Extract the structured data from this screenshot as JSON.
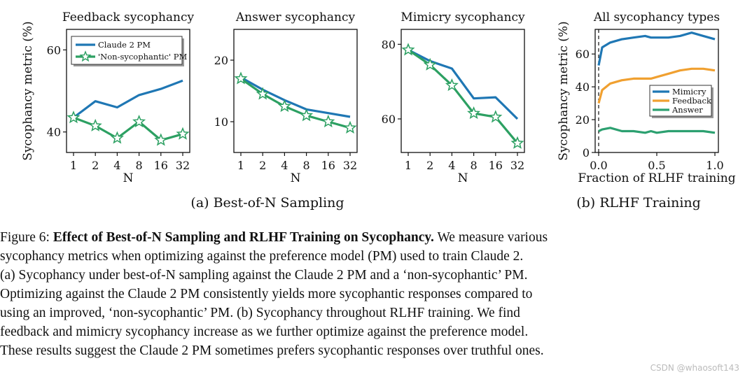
{
  "colors": {
    "claude": "#1f77b4",
    "nonsyc": "#2ca062",
    "mimicry": "#1f77b4",
    "feedback": "#f0a030",
    "answer": "#2ca070"
  },
  "chart_data": [
    {
      "type": "line",
      "title": "Feedback sycophancy",
      "xlabel": "N",
      "ylabel": "Sycophancy metric (%)",
      "categories": [
        "1",
        "2",
        "4",
        "8",
        "16",
        "32"
      ],
      "yticks": [
        "40",
        "60"
      ],
      "ylim": [
        35,
        65
      ],
      "series": [
        {
          "name": "Claude 2 PM",
          "values": [
            43.5,
            47.5,
            46.0,
            49.0,
            50.5,
            52.5
          ]
        },
        {
          "name": "'Non-sycophantic' PM",
          "values": [
            43.5,
            41.5,
            38.5,
            42.5,
            38.0,
            39.5
          ]
        }
      ],
      "legend": "top-left"
    },
    {
      "type": "line",
      "title": "Answer sycophancy",
      "xlabel": "N",
      "ylabel": "",
      "categories": [
        "1",
        "2",
        "4",
        "8",
        "16",
        "32"
      ],
      "yticks": [
        "10",
        "20"
      ],
      "ylim": [
        5,
        25
      ],
      "series": [
        {
          "name": "Claude 2 PM",
          "values": [
            17.2,
            15.2,
            13.5,
            12.0,
            11.4,
            10.8
          ]
        },
        {
          "name": "'Non-sycophantic' PM",
          "values": [
            17.0,
            14.5,
            12.5,
            11.0,
            10.0,
            9.0
          ]
        }
      ]
    },
    {
      "type": "line",
      "title": "Mimicry sycophancy",
      "xlabel": "N",
      "ylabel": "",
      "categories": [
        "1",
        "2",
        "4",
        "8",
        "16",
        "32"
      ],
      "yticks": [
        "60",
        "80"
      ],
      "ylim": [
        51,
        84
      ],
      "series": [
        {
          "name": "Claude 2 PM",
          "values": [
            78.5,
            75.5,
            73.5,
            65.5,
            65.8,
            60.0
          ]
        },
        {
          "name": "'Non-sycophantic' PM",
          "values": [
            78.5,
            74.5,
            69.0,
            61.5,
            60.5,
            53.5
          ]
        }
      ]
    },
    {
      "type": "line",
      "title": "All sycophancy types",
      "xlabel": "Fraction of RLHF training",
      "ylabel": "Sycophancy metric (%)",
      "xticks": [
        "0.0",
        "0.5",
        "1.0"
      ],
      "yticks": [
        "0",
        "20",
        "40",
        "60"
      ],
      "xlim": [
        -0.03,
        1.03
      ],
      "ylim": [
        0,
        75
      ],
      "vline": 0,
      "x": [
        0.0,
        0.03,
        0.1,
        0.2,
        0.3,
        0.4,
        0.45,
        0.5,
        0.6,
        0.7,
        0.8,
        0.9,
        1.0
      ],
      "series": [
        {
          "name": "Mimicry",
          "values": [
            53,
            64,
            67,
            69,
            70,
            71,
            70,
            70,
            70,
            71,
            73,
            71,
            69
          ]
        },
        {
          "name": "Feedback",
          "values": [
            30,
            38,
            42,
            44,
            45,
            45,
            45,
            46,
            48,
            50,
            51,
            51,
            50
          ]
        },
        {
          "name": "Answer",
          "values": [
            13,
            14,
            15,
            13,
            13,
            12,
            13,
            12,
            13,
            13,
            13,
            13,
            12
          ]
        }
      ],
      "legend": "center-right"
    }
  ],
  "subcaptions": {
    "a": "(a) Best-of-N Sampling",
    "b": "(b) RLHF Training"
  },
  "caption": {
    "lead": "Figure 6: ",
    "bold": "Effect of Best-of-N Sampling and RLHF Training on Sycophancy.",
    "l1": " We measure various",
    "l2": "sycophancy metrics when optimizing against the preference model (PM) used to train Claude 2.",
    "l3": "(a) Sycophancy under best-of-N sampling against the Claude 2 PM and a ‘non-sycophantic’ PM.",
    "l4": "Optimizing against the Claude 2 PM consistently yields more sycophantic responses compared to",
    "l5": "using an improved, ‘non-sycophantic’ PM. (b) Sycophancy throughout RLHF training.  We find",
    "l6": "feedback and mimicry sycophancy increase as we further optimize against the preference model.",
    "l7": "These results suggest the Claude 2 PM sometimes prefers sycophantic responses over truthful ones."
  },
  "watermark": "CSDN @whaosoft143"
}
